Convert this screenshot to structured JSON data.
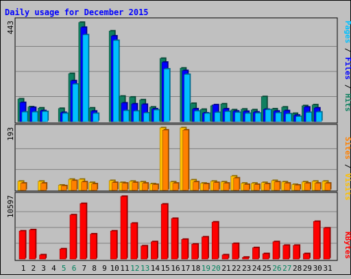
{
  "chart_data": {
    "type": "bar",
    "title": "Daily usage for December 2015",
    "days": [
      "1",
      "2",
      "3",
      "4",
      "5",
      "6",
      "7",
      "8",
      "9",
      "10",
      "11",
      "12",
      "13",
      "14",
      "15",
      "16",
      "17",
      "18",
      "19",
      "20",
      "21",
      "22",
      "23",
      "24",
      "25",
      "26",
      "27",
      "28",
      "29",
      "30",
      "31"
    ],
    "weekend_days": [
      "5",
      "6",
      "12",
      "13",
      "19",
      "20",
      "26",
      "27"
    ],
    "panels": {
      "top": {
        "max_label": "443",
        "ymax": 443,
        "series": [
          {
            "name": "Hits",
            "color": "#108060",
            "values": [
              100,
              65,
              60,
              0,
              58,
              212,
              438,
              60,
              0,
              400,
              112,
              108,
              96,
              64,
              279,
              0,
              236,
              80,
              54,
              70,
              78,
              52,
              55,
              52,
              110,
              56,
              64,
              36,
              70,
              74,
              0
            ]
          },
          {
            "name": "Files",
            "color": "#0000ff",
            "values": [
              84,
              62,
              48,
              0,
              40,
              180,
              416,
              46,
              0,
              378,
              82,
              78,
              76,
              56,
              262,
              0,
              225,
              56,
              38,
              74,
              56,
              46,
              45,
              42,
              54,
              46,
              48,
              28,
              64,
              60,
              0
            ]
          },
          {
            "name": "Pages",
            "color": "#00c0ff",
            "values": [
              42,
              42,
              44,
              0,
              36,
              165,
              383,
              36,
              0,
              358,
              48,
              46,
              38,
              51,
              232,
              0,
              208,
              46,
              36,
              40,
              44,
              40,
              36,
              37,
              52,
              38,
              34,
              22,
              40,
              42,
              0
            ]
          }
        ],
        "legend": [
          "Pages",
          "Files",
          "Hits"
        ]
      },
      "middle": {
        "max_label": "193",
        "ymax": 193,
        "series": [
          {
            "name": "Sites",
            "color": "#ffc000",
            "values": [
              28,
              0,
              28,
              0,
              16,
              34,
              34,
              24,
              0,
              30,
              24,
              28,
              26,
              20,
              193,
              26,
              193,
              32,
              22,
              28,
              26,
              44,
              22,
              22,
              24,
              30,
              26,
              18,
              26,
              28,
              28
            ]
          },
          {
            "name": "Visits",
            "color": "#ff8000",
            "values": [
              22,
              0,
              22,
              0,
              14,
              30,
              26,
              20,
              0,
              24,
              22,
              24,
              22,
              18,
              186,
              22,
              186,
              26,
              20,
              24,
              22,
              38,
              18,
              18,
              20,
              26,
              22,
              16,
              22,
              22,
              22
            ]
          }
        ],
        "legend": [
          "Sites",
          "Visits"
        ]
      },
      "bottom": {
        "max_label": "10597",
        "ymax": 10597,
        "series": [
          {
            "name": "KBytes",
            "color": "#ff0000",
            "values": [
              4700,
              4900,
              700,
              0,
              1700,
              7400,
              9300,
              4200,
              0,
              4700,
              10500,
              6000,
              2200,
              2900,
              9200,
              6800,
              3300,
              2500,
              3700,
              6200,
              700,
              2600,
              300,
              1900,
              900,
              2900,
              2300,
              2300,
              900,
              6300,
              5200
            ]
          }
        ],
        "legend": [
          "KBytes"
        ]
      }
    }
  },
  "colors": {
    "title": "#0000ff",
    "weekend_label": "#00805c",
    "weekday_label": "#000000",
    "plot_background": "#c0c0c0",
    "grid": "#808080"
  }
}
